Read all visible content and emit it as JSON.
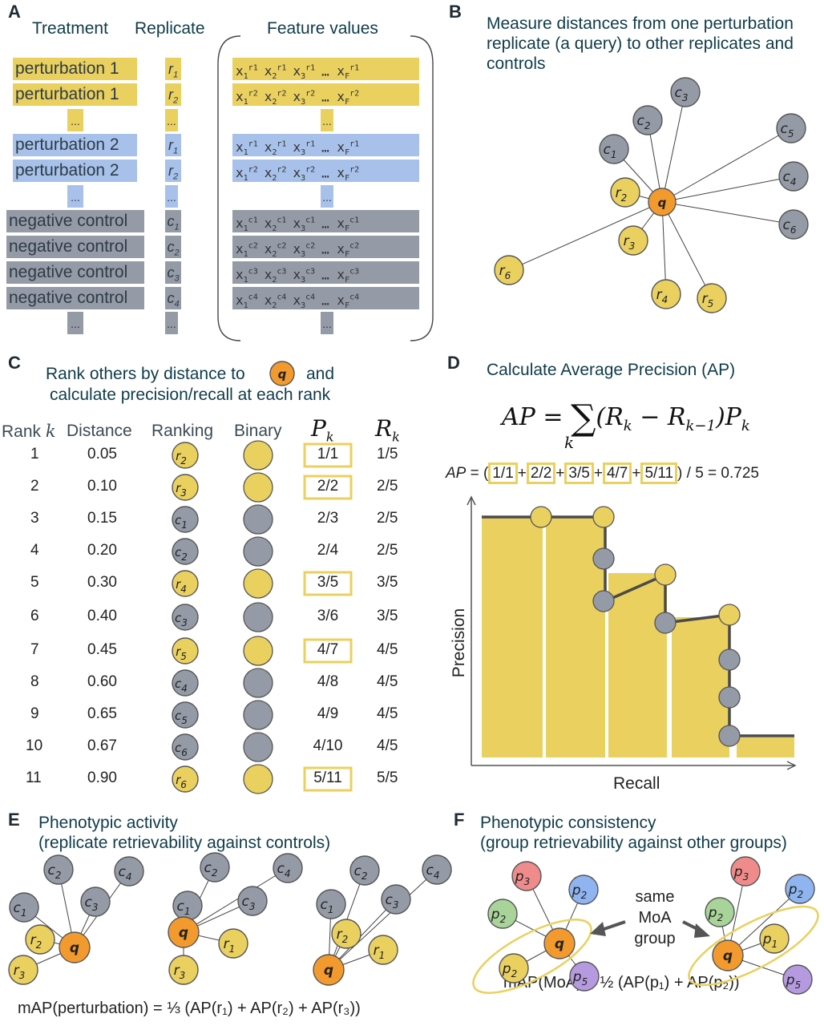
{
  "panels": {
    "A": {
      "letter": "A",
      "headers": {
        "treatment": "Treatment",
        "replicate": "Replicate",
        "features": "Feature values"
      },
      "rows": [
        {
          "label": "perturbation 1",
          "rep": "r",
          "sub": "1",
          "sup": "r1",
          "color": "yellow"
        },
        {
          "label": "perturbation 1",
          "rep": "r",
          "sub": "2",
          "sup": "r2",
          "color": "yellow"
        },
        {
          "label": "perturbation 2",
          "rep": "r",
          "sub": "1",
          "sup": "r1",
          "color": "blue"
        },
        {
          "label": "perturbation 2",
          "rep": "r",
          "sub": "2",
          "sup": "r2",
          "color": "blue"
        },
        {
          "label": "negative control",
          "rep": "c",
          "sub": "1",
          "sup": "c1",
          "color": "gray"
        },
        {
          "label": "negative control",
          "rep": "c",
          "sub": "2",
          "sup": "c2",
          "color": "gray"
        },
        {
          "label": "negative control",
          "rep": "c",
          "sub": "3",
          "sup": "c3",
          "color": "gray"
        },
        {
          "label": "negative control",
          "rep": "c",
          "sub": "4",
          "sup": "c4",
          "color": "gray"
        }
      ],
      "ellipsis": "...",
      "feature_ellipsis": "..."
    },
    "B": {
      "letter": "B",
      "title_line1": "Measure distances from one perturbation",
      "title_line2": "replicate (a query) to other replicates and",
      "title_line3": "controls",
      "query": "q",
      "nodes": [
        "c3",
        "c2",
        "c5",
        "c1",
        "c4",
        "r2",
        "c6",
        "r3",
        "r6",
        "r4",
        "r5"
      ]
    },
    "C": {
      "letter": "C",
      "title_line1_a": "Rank others by distance to",
      "title_line1_b": "and",
      "title_line2": "calculate precision/recall at each rank",
      "headers": {
        "rank": "Rank",
        "rank_k": "k",
        "distance": "Distance",
        "ranking": "Ranking",
        "binary": "Binary",
        "pk": "P",
        "rk": "R",
        "sub_k": "k"
      },
      "rows": [
        {
          "rank": "1",
          "distance": "0.05",
          "node": "r2",
          "binary": "yellow",
          "p": "1/1",
          "r": "1/5",
          "boxed": true
        },
        {
          "rank": "2",
          "distance": "0.10",
          "node": "r3",
          "binary": "yellow",
          "p": "2/2",
          "r": "2/5",
          "boxed": true
        },
        {
          "rank": "3",
          "distance": "0.15",
          "node": "c1",
          "binary": "gray",
          "p": "2/3",
          "r": "2/5",
          "boxed": false
        },
        {
          "rank": "4",
          "distance": "0.20",
          "node": "c2",
          "binary": "gray",
          "p": "2/4",
          "r": "2/5",
          "boxed": false
        },
        {
          "rank": "5",
          "distance": "0.30",
          "node": "r4",
          "binary": "yellow",
          "p": "3/5",
          "r": "3/5",
          "boxed": true
        },
        {
          "rank": "6",
          "distance": "0.40",
          "node": "c3",
          "binary": "gray",
          "p": "3/6",
          "r": "3/5",
          "boxed": false
        },
        {
          "rank": "7",
          "distance": "0.45",
          "node": "r5",
          "binary": "yellow",
          "p": "4/7",
          "r": "4/5",
          "boxed": true
        },
        {
          "rank": "8",
          "distance": "0.60",
          "node": "c4",
          "binary": "gray",
          "p": "4/8",
          "r": "4/5",
          "boxed": false
        },
        {
          "rank": "9",
          "distance": "0.65",
          "node": "c5",
          "binary": "gray",
          "p": "4/9",
          "r": "4/5",
          "boxed": false
        },
        {
          "rank": "10",
          "distance": "0.67",
          "node": "c6",
          "binary": "gray",
          "p": "4/10",
          "r": "4/5",
          "boxed": false
        },
        {
          "rank": "11",
          "distance": "0.90",
          "node": "r6",
          "binary": "yellow",
          "p": "5/11",
          "r": "5/5",
          "boxed": true
        }
      ]
    },
    "D": {
      "letter": "D",
      "title": "Calculate Average Precision (AP)",
      "formula": {
        "lhs": "AP = ",
        "sum": "∑",
        "sum_sub": "k",
        "body_a": "(R",
        "body_b": " − R",
        "body_c": ")P",
        "sub_k": "k",
        "sub_km1": "k−1"
      },
      "ap_line": {
        "prefix": "AP",
        "eq": " = (",
        "terms": [
          "1/1",
          "2/2",
          "3/5",
          "4/7",
          "5/11"
        ],
        "plus": "+",
        "suffix": ") / 5 = 0.725"
      },
      "xlabel": "Recall",
      "ylabel": "Precision"
    },
    "E": {
      "letter": "E",
      "title_line1": "Phenotypic activity",
      "title_line2": "(replicate retrievability against controls)",
      "caption": "mAP(perturbation) = ⅓ (AP(r₁) + AP(r₂) + AP(r₃))"
    },
    "F": {
      "letter": "F",
      "title_line1": "Phenotypic consistency",
      "title_line2": "(group retrievability against other groups)",
      "arrow_label_1": "same",
      "arrow_label_2": "MoA",
      "arrow_label_3": "group",
      "caption": "mAP(MoA) = ½ (AP(p₁) + AP(p₂))"
    }
  },
  "colors": {
    "yellow": "#ead05f",
    "blue": "#a7c1ea",
    "gray": "#949aa6",
    "orange": "#f39a2e",
    "red": "#f08b8b",
    "green": "#a8d49a",
    "lightblue": "#8fb4f0",
    "purple": "#b59ae0"
  }
}
